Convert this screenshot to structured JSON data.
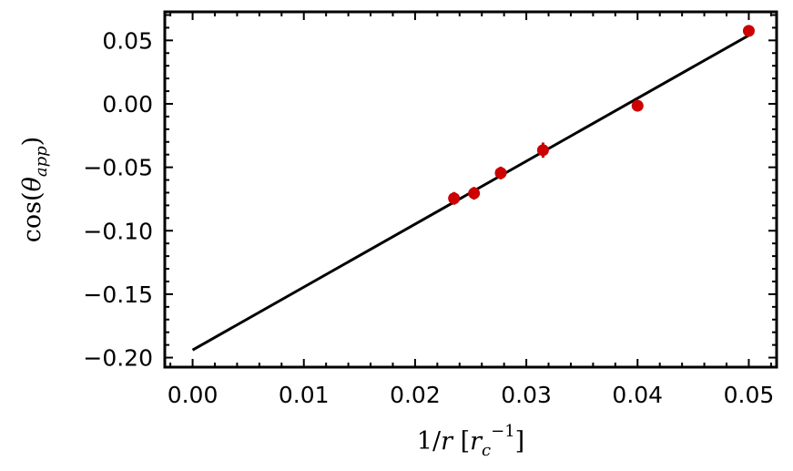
{
  "chart_data": {
    "type": "scatter",
    "xlabel": "1/r [r_c^-1]",
    "ylabel": "cos(θ_app)",
    "xlim": [
      -0.0025,
      0.0525
    ],
    "ylim": [
      -0.2075,
      0.0725
    ],
    "x_ticks": [
      0.0,
      0.01,
      0.02,
      0.03,
      0.04,
      0.05
    ],
    "x_tick_labels": [
      "0.00",
      "0.01",
      "0.02",
      "0.03",
      "0.04",
      "0.05"
    ],
    "y_ticks": [
      0.05,
      0.0,
      -0.05,
      -0.1,
      -0.15,
      -0.2
    ],
    "y_tick_labels": [
      "0.05",
      "0.00",
      "−0.05",
      "−0.10",
      "−0.15",
      "−0.20"
    ],
    "grid": false,
    "series": [
      {
        "kind": "points-with-errorbars",
        "color": "#cc0000",
        "points": [
          {
            "x": 0.0235,
            "y": -0.0745,
            "err": 0.005
          },
          {
            "x": 0.0253,
            "y": -0.0705,
            "err": 0.005
          },
          {
            "x": 0.0277,
            "y": -0.0545,
            "err": 0.005
          },
          {
            "x": 0.0315,
            "y": -0.0365,
            "err": 0.006
          },
          {
            "x": 0.04,
            "y": -0.0015,
            "err": 0.002
          },
          {
            "x": 0.05,
            "y": 0.0575,
            "err": 0.002
          }
        ]
      },
      {
        "kind": "fit-line",
        "color": "#000000",
        "points": [
          {
            "x": 0.0,
            "y": -0.194
          },
          {
            "x": 0.05,
            "y": 0.054
          }
        ]
      }
    ]
  }
}
